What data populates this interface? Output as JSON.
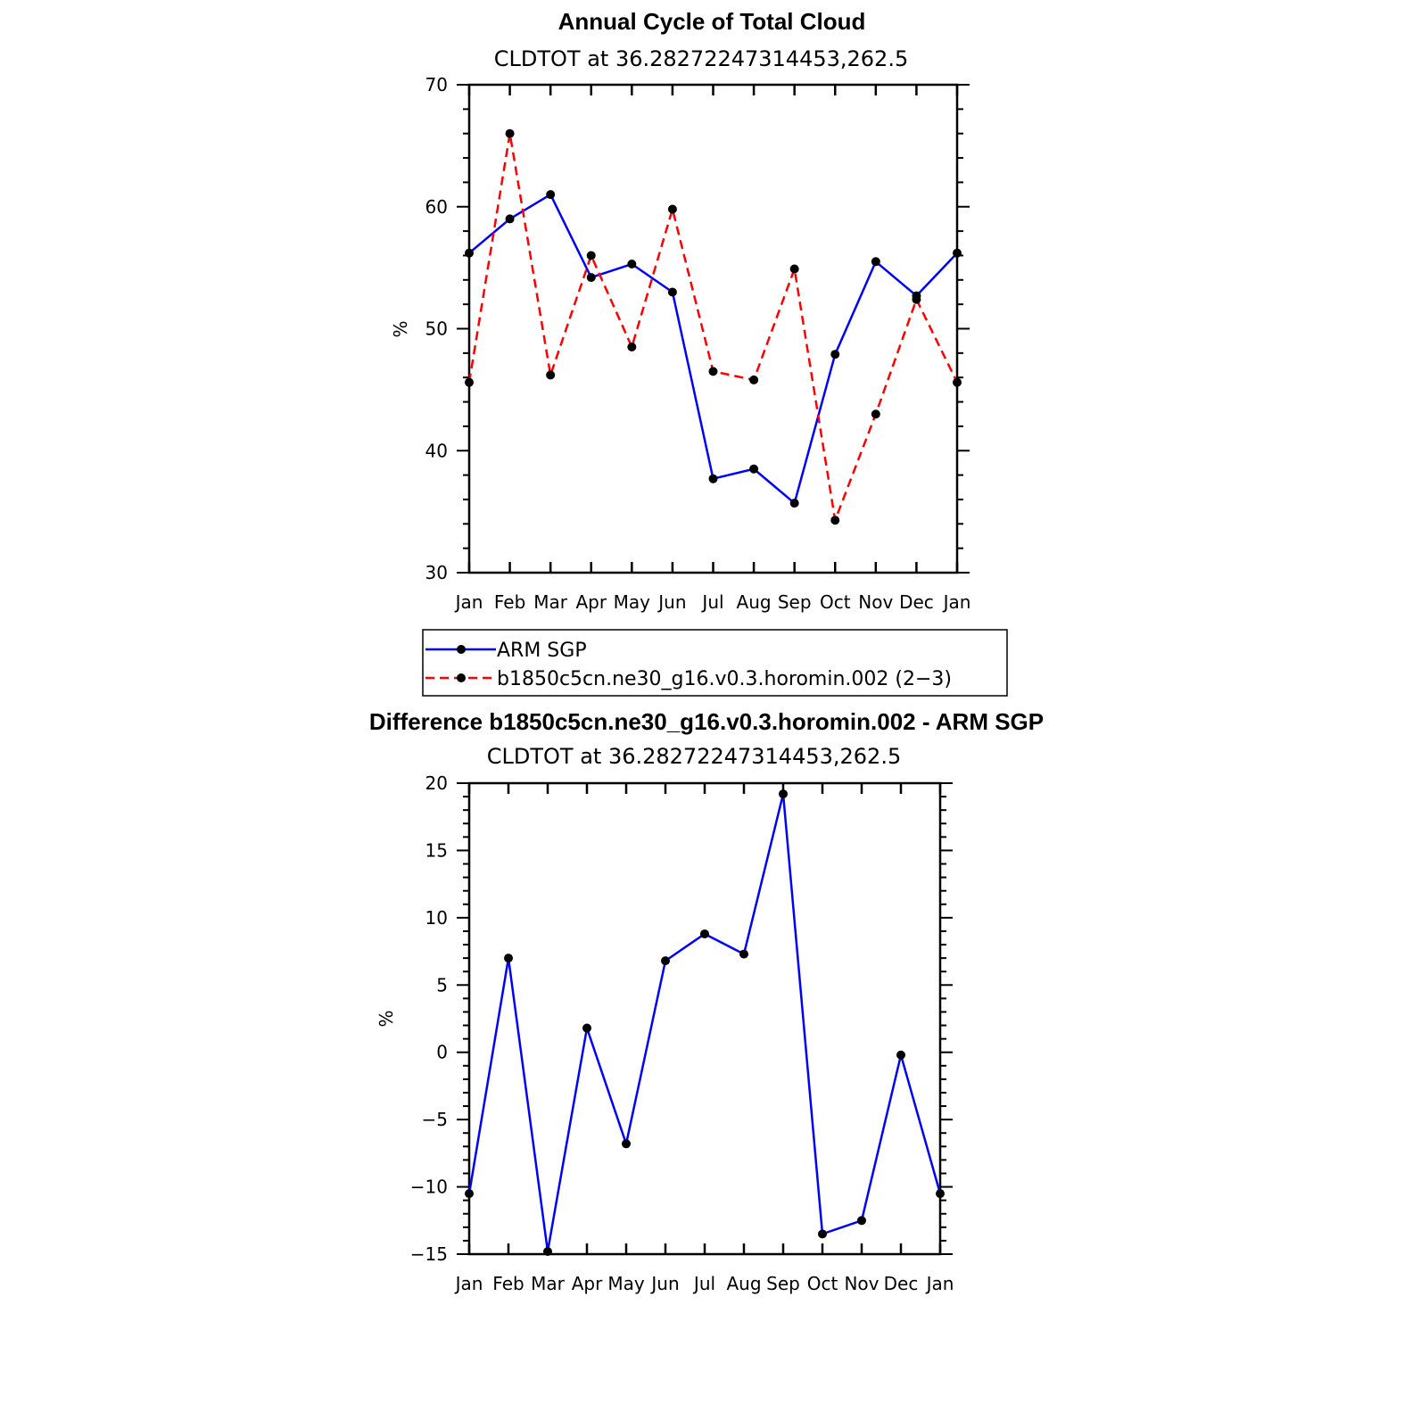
{
  "chart_data": [
    {
      "type": "line",
      "title": "Annual Cycle of Total Cloud",
      "subtitle": "CLDTOT at 36.28272247314453,262.5",
      "xlabel": "",
      "ylabel": "%",
      "categories": [
        "Jan",
        "Feb",
        "Mar",
        "Apr",
        "May",
        "Jun",
        "Jul",
        "Aug",
        "Sep",
        "Oct",
        "Nov",
        "Dec",
        "Jan"
      ],
      "ylim": [
        30,
        70
      ],
      "yticks": [
        "30",
        "40",
        "50",
        "60",
        "70"
      ],
      "series": [
        {
          "name": "ARM SGP",
          "color": "#0000ff",
          "dash": "solid",
          "values": [
            56.2,
            59.0,
            61.0,
            54.2,
            55.3,
            53.0,
            37.7,
            38.5,
            35.7,
            47.9,
            55.5,
            52.7,
            56.2
          ]
        },
        {
          "name": "b1850c5cn.ne30_g16.v0.3.horomin.002 (2−3)",
          "color": "#ff0000",
          "dash": "dashed",
          "values": [
            45.6,
            66.0,
            46.2,
            56.0,
            48.5,
            59.8,
            46.5,
            45.8,
            54.9,
            34.3,
            43.0,
            52.4,
            45.6
          ]
        }
      ],
      "legend": {
        "placement": "below",
        "entries": [
          "ARM SGP",
          "b1850c5cn.ne30_g16.v0.3.horomin.002 (2−3)"
        ]
      }
    },
    {
      "type": "line",
      "title": "Difference b1850c5cn.ne30_g16.v0.3.horomin.002 - ARM SGP",
      "subtitle": "CLDTOT at 36.28272247314453,262.5",
      "xlabel": "",
      "ylabel": "%",
      "categories": [
        "Jan",
        "Feb",
        "Mar",
        "Apr",
        "May",
        "Jun",
        "Jul",
        "Aug",
        "Sep",
        "Oct",
        "Nov",
        "Dec",
        "Jan"
      ],
      "ylim": [
        -15,
        20
      ],
      "yticks": [
        "−15",
        "−10",
        "−5",
        "0",
        "5",
        "10",
        "15",
        "20"
      ],
      "series": [
        {
          "name": "Difference",
          "color": "#0000ff",
          "dash": "solid",
          "values": [
            -10.5,
            7.0,
            -14.8,
            1.8,
            -6.8,
            6.8,
            8.8,
            7.3,
            19.2,
            -13.5,
            -12.5,
            -0.2,
            -10.5
          ]
        }
      ]
    }
  ]
}
